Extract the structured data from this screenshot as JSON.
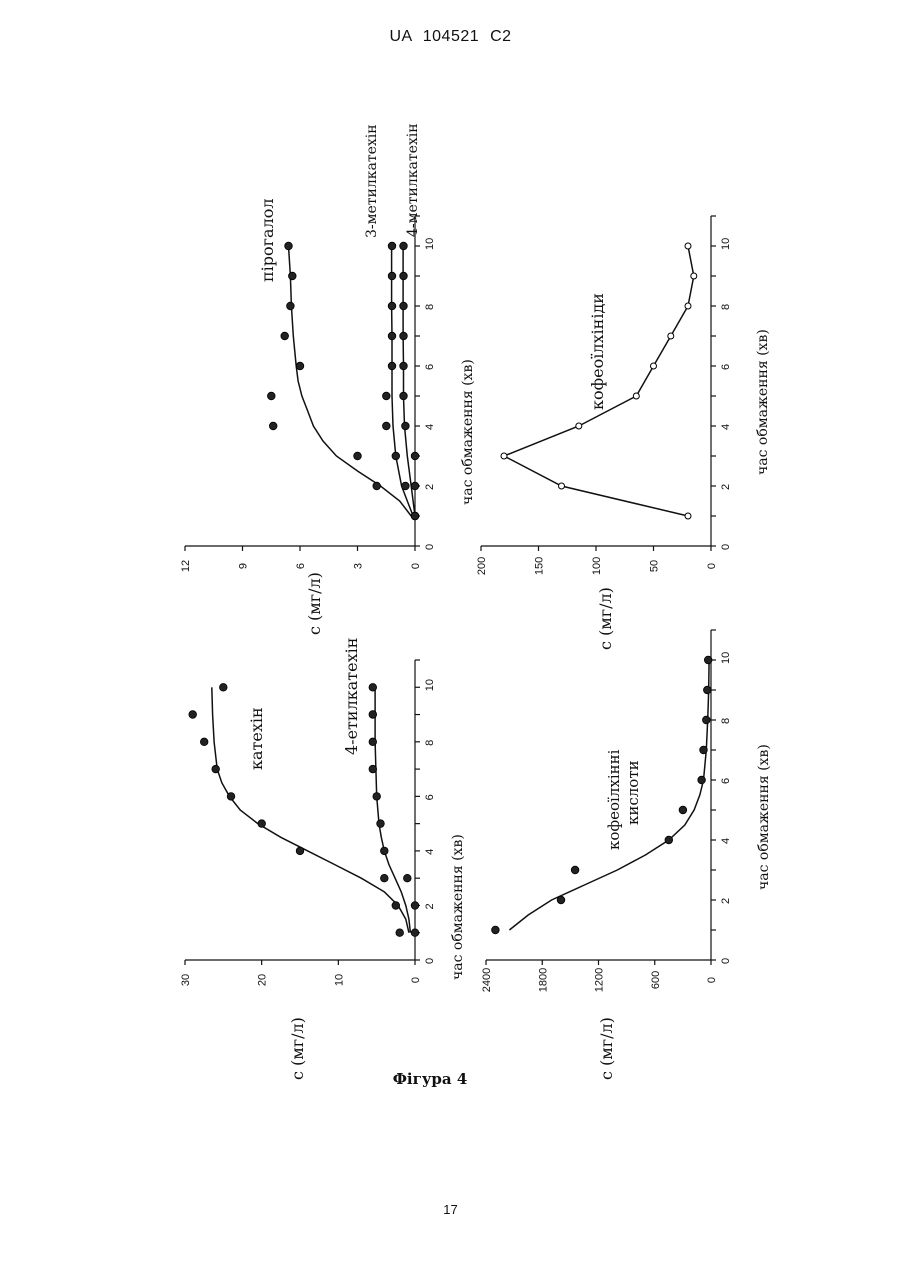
{
  "header": {
    "text": "UA   104521   C2"
  },
  "page_number": "17",
  "caption": "Фігура 4",
  "chart_data": [
    {
      "type": "scatter",
      "xlabel": "час обмаження (хв)",
      "ylabel": "c (мг/л)",
      "xlim": [
        0,
        11
      ],
      "ylim": [
        0,
        30
      ],
      "xticks": [
        "0",
        "2",
        "4",
        "6",
        "8",
        "10"
      ],
      "yticks": [
        "0",
        "10",
        "20",
        "30"
      ],
      "series": [
        {
          "name": "катехін",
          "x": [
            1,
            2,
            3,
            4,
            5,
            6,
            7,
            8,
            9,
            10
          ],
          "y": [
            2,
            2.5,
            4,
            15,
            20,
            24,
            26,
            27.5,
            29,
            25
          ],
          "fit_x": [
            1,
            1.5,
            2,
            2.5,
            3,
            3.5,
            4,
            4.5,
            5,
            5.5,
            6,
            6.5,
            7,
            8,
            9,
            10
          ],
          "fit_y": [
            0.8,
            1.2,
            2.2,
            4,
            7,
            10.5,
            14,
            17.5,
            20.5,
            22.8,
            24.2,
            25.2,
            25.8,
            26.2,
            26.4,
            26.5
          ]
        },
        {
          "name": "4-етилкатехін",
          "x": [
            1,
            2,
            3,
            4,
            5,
            6,
            7,
            8,
            9,
            10
          ],
          "y": [
            0,
            0,
            1,
            4,
            4.5,
            5,
            5.5,
            5.5,
            5.5,
            5.5
          ],
          "fit_x": [
            1,
            1.5,
            2,
            2.5,
            3,
            3.5,
            4,
            4.5,
            5,
            6,
            7,
            8,
            9,
            10
          ],
          "fit_y": [
            0.6,
            0.8,
            1.2,
            1.8,
            2.6,
            3.4,
            4,
            4.4,
            4.7,
            5,
            5.1,
            5.2,
            5.2,
            5.2
          ]
        }
      ]
    },
    {
      "type": "scatter",
      "xlabel": "час обмаження (хв)",
      "ylabel": "c (мг/л)",
      "xlim": [
        0,
        11
      ],
      "ylim": [
        0,
        12
      ],
      "xticks": [
        "0",
        "2",
        "4",
        "6",
        "8",
        "10"
      ],
      "yticks": [
        "0",
        "3",
        "6",
        "9",
        "12"
      ],
      "series": [
        {
          "name": "пірогалол",
          "x": [
            1,
            2,
            3,
            4,
            5,
            6,
            7,
            8,
            9,
            10
          ],
          "y": [
            0,
            2,
            3,
            7.4,
            7.5,
            6,
            6.8,
            6.5,
            6.4,
            6.6
          ],
          "fit_x": [
            1,
            1.5,
            2,
            2.5,
            3,
            3.5,
            4,
            4.5,
            5,
            5.5,
            6,
            7,
            8,
            9,
            10
          ],
          "fit_y": [
            0.2,
            0.8,
            1.8,
            3,
            4.1,
            4.8,
            5.3,
            5.6,
            5.9,
            6.1,
            6.2,
            6.35,
            6.45,
            6.5,
            6.6
          ]
        },
        {
          "name": "3-метилкатехін",
          "x": [
            1,
            2,
            3,
            4,
            5,
            6,
            7,
            8,
            9,
            10
          ],
          "y": [
            0,
            0.5,
            1,
            1.5,
            1.5,
            1.2,
            1.2,
            1.2,
            1.2,
            1.2
          ],
          "fit_x": [
            1,
            1.5,
            2,
            3,
            4,
            5,
            6,
            7,
            8,
            9,
            10
          ],
          "fit_y": [
            0.1,
            0.4,
            0.7,
            1,
            1.15,
            1.2,
            1.2,
            1.2,
            1.22,
            1.22,
            1.22
          ]
        },
        {
          "name": "4-метилкатехін",
          "x": [
            1,
            2,
            3,
            4,
            5,
            6,
            7,
            8,
            9,
            10
          ],
          "y": [
            0,
            0,
            0,
            0.5,
            0.6,
            0.6,
            0.6,
            0.6,
            0.6,
            0.6
          ],
          "fit_x": [
            1,
            2,
            3,
            4,
            5,
            6,
            7,
            8,
            9,
            10
          ],
          "fit_y": [
            0,
            0.2,
            0.4,
            0.55,
            0.6,
            0.6,
            0.62,
            0.62,
            0.62,
            0.62
          ]
        }
      ]
    },
    {
      "type": "scatter",
      "xlabel": "час обмаження (хв)",
      "ylabel": "c (мг/л)",
      "xlim": [
        0,
        11
      ],
      "ylim": [
        0,
        2400
      ],
      "xticks": [
        "0",
        "2",
        "4",
        "6",
        "8",
        "10"
      ],
      "yticks": [
        "0",
        "600",
        "1200",
        "1800",
        "2400"
      ],
      "series": [
        {
          "name": "кофеоїлхінні кислоти",
          "x": [
            1,
            2,
            3,
            4,
            5,
            6,
            7,
            8,
            9,
            10
          ],
          "y": [
            2300,
            1600,
            1450,
            450,
            300,
            100,
            80,
            50,
            40,
            30
          ],
          "fit_x": [
            1,
            1.5,
            2,
            2.5,
            3,
            3.5,
            4,
            4.5,
            5,
            5.5,
            6,
            7,
            8,
            9,
            10
          ],
          "fit_y": [
            2150,
            1950,
            1700,
            1350,
            1000,
            700,
            450,
            280,
            180,
            120,
            80,
            50,
            35,
            25,
            20
          ]
        }
      ]
    },
    {
      "type": "line",
      "xlabel": "час обмаження (хв)",
      "ylabel": "c (мг/л)",
      "xlim": [
        0,
        11
      ],
      "ylim": [
        0,
        200
      ],
      "xticks": [
        "0",
        "2",
        "4",
        "6",
        "8",
        "10"
      ],
      "yticks": [
        "0",
        "50",
        "100",
        "150",
        "200"
      ],
      "series": [
        {
          "name": "кофеоїлхініди",
          "x": [
            1,
            2,
            3,
            4,
            5,
            6,
            7,
            8,
            9,
            10
          ],
          "y": [
            20,
            130,
            180,
            115,
            65,
            50,
            35,
            20,
            15,
            20
          ]
        }
      ]
    }
  ]
}
